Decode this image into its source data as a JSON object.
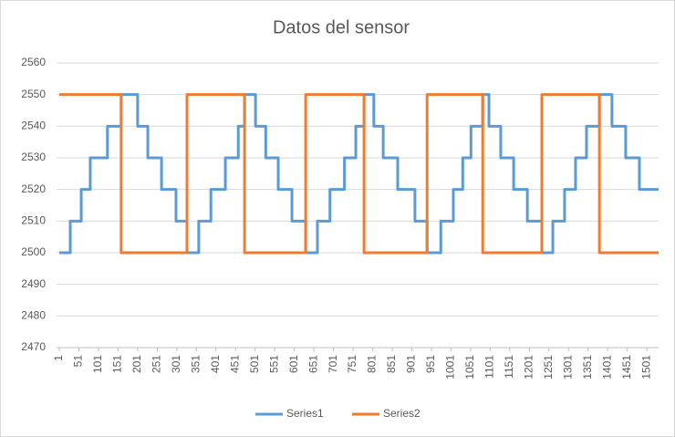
{
  "chart_data": {
    "type": "line",
    "title": "Datos del sensor",
    "step": "post",
    "series": [
      {
        "name": "Series1",
        "color": "#5b9bd5",
        "x": [
          1,
          29,
          57,
          80,
          124,
          159,
          201,
          227,
          262,
          299,
          327,
          357,
          388,
          425,
          458,
          474,
          502,
          528,
          560,
          595,
          630,
          660,
          692,
          729,
          758,
          779,
          804,
          828,
          865,
          909,
          940,
          975,
          1007,
          1031,
          1052,
          1082,
          1098,
          1128,
          1161,
          1196,
          1233,
          1261,
          1291,
          1319,
          1347,
          1380,
          1412,
          1447,
          1482,
          1531
        ],
        "values": [
          2500,
          2510,
          2520,
          2530,
          2540,
          2550,
          2540,
          2530,
          2520,
          2510,
          2500,
          2510,
          2520,
          2530,
          2540,
          2550,
          2540,
          2530,
          2520,
          2510,
          2500,
          2510,
          2520,
          2530,
          2540,
          2550,
          2540,
          2530,
          2520,
          2510,
          2500,
          2510,
          2520,
          2530,
          2540,
          2550,
          2540,
          2530,
          2520,
          2510,
          2500,
          2510,
          2520,
          2530,
          2540,
          2550,
          2540,
          2530,
          2520,
          2520
        ]
      },
      {
        "name": "Series2",
        "color": "#ed7d31",
        "x": [
          1,
          159,
          327,
          474,
          630,
          779,
          940,
          1082,
          1233,
          1380,
          1531
        ],
        "values": [
          2550,
          2500,
          2550,
          2500,
          2550,
          2500,
          2550,
          2500,
          2550,
          2500,
          2500
        ]
      }
    ],
    "xlim": [
      1,
      1531
    ],
    "xticks": [
      1,
      51,
      101,
      151,
      201,
      251,
      301,
      351,
      401,
      451,
      501,
      551,
      601,
      651,
      701,
      751,
      801,
      851,
      901,
      951,
      1001,
      1051,
      1101,
      1151,
      1201,
      1251,
      1301,
      1351,
      1401,
      1451,
      1501
    ],
    "ylim": [
      2470,
      2560
    ],
    "yticks": [
      2470,
      2480,
      2490,
      2500,
      2510,
      2520,
      2530,
      2540,
      2550,
      2560
    ],
    "grid": true,
    "legend": "bottom"
  }
}
